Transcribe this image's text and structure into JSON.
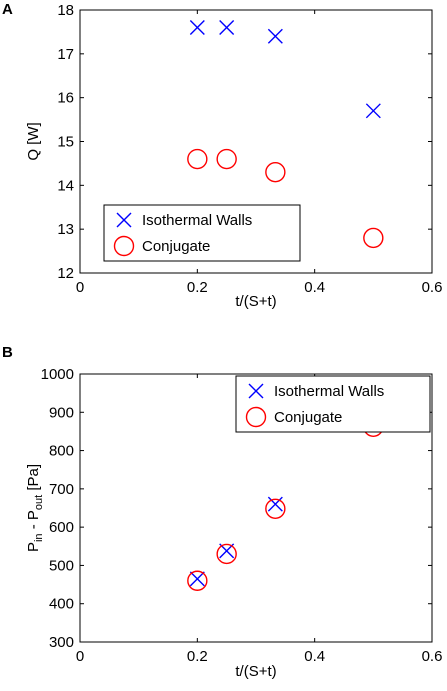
{
  "chart_data": [
    {
      "panel": "A",
      "type": "scatter",
      "xlabel": "t/(S+t)",
      "ylabel": "Q [W]",
      "xlim": [
        0,
        0.6
      ],
      "ylim": [
        12,
        18
      ],
      "xticks": [
        0,
        0.2,
        0.4,
        0.6
      ],
      "xtick_labels": [
        "0",
        "0.2",
        "0.4",
        "0.6"
      ],
      "yticks": [
        12,
        13,
        14,
        15,
        16,
        17,
        18
      ],
      "ytick_labels": [
        "12",
        "13",
        "14",
        "15",
        "16",
        "17",
        "18"
      ],
      "grid": false,
      "legend_position": "lower-left",
      "series": [
        {
          "name": "Isothermal Walls",
          "marker": "x",
          "color": "#0000ff",
          "x": [
            0.2,
            0.25,
            0.333,
            0.5
          ],
          "y": [
            17.6,
            17.6,
            17.4,
            15.7
          ]
        },
        {
          "name": "Conjugate",
          "marker": "o",
          "color": "#ff0000",
          "x": [
            0.2,
            0.25,
            0.333,
            0.5
          ],
          "y": [
            14.6,
            14.6,
            14.3,
            12.8
          ]
        }
      ]
    },
    {
      "panel": "B",
      "type": "scatter",
      "xlabel": "t/(S+t)",
      "ylabel": {
        "main": "P",
        "sub1": "in",
        "mid": " - P",
        "sub2": "out",
        "unit": " [Pa]"
      },
      "xlim": [
        0,
        0.6
      ],
      "ylim": [
        300,
        1000
      ],
      "xticks": [
        0,
        0.2,
        0.4,
        0.6
      ],
      "xtick_labels": [
        "0",
        "0.2",
        "0.4",
        "0.6"
      ],
      "yticks": [
        300,
        400,
        500,
        600,
        700,
        800,
        900,
        1000
      ],
      "ytick_labels": [
        "300",
        "400",
        "500",
        "600",
        "700",
        "800",
        "900",
        "1000"
      ],
      "grid": false,
      "legend_position": "top-right",
      "series": [
        {
          "name": "Isothermal Walls",
          "marker": "x",
          "color": "#0000ff",
          "x": [
            0.2,
            0.25,
            0.333,
            0.5
          ],
          "y": [
            465,
            538,
            660,
            870
          ]
        },
        {
          "name": "Conjugate",
          "marker": "o",
          "color": "#ff0000",
          "x": [
            0.2,
            0.25,
            0.333,
            0.5
          ],
          "y": [
            460,
            530,
            648,
            862
          ]
        }
      ]
    }
  ]
}
